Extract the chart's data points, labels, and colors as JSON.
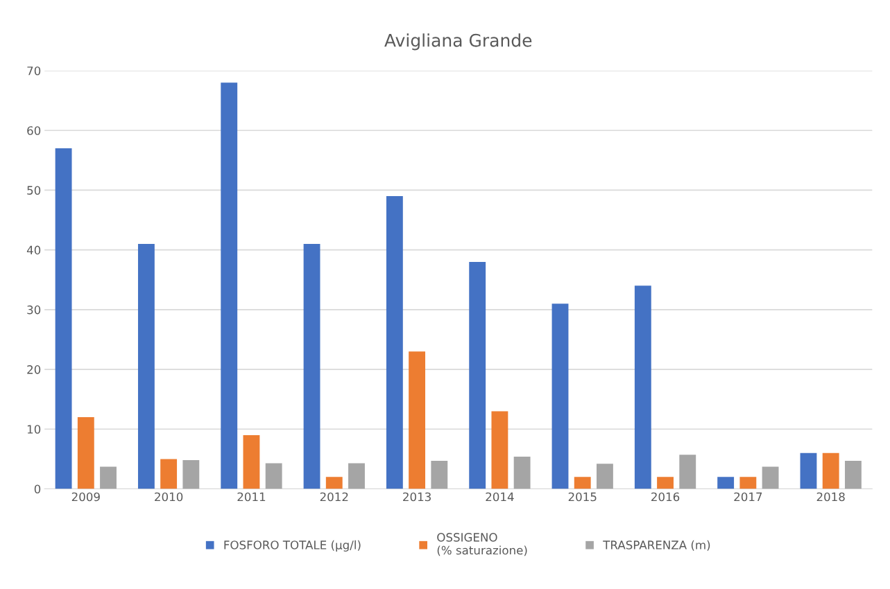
{
  "chart_data": {
    "type": "bar",
    "title": "Avigliana Grande",
    "categories": [
      "2009",
      "2010",
      "2011",
      "2012",
      "2013",
      "2014",
      "2015",
      "2016",
      "2017",
      "2018"
    ],
    "series": [
      {
        "name": "FOSFORO TOTALE (µg/l)",
        "color": "#4472c4",
        "values": [
          57,
          41,
          68,
          41,
          49,
          38,
          31,
          34,
          2,
          6
        ]
      },
      {
        "name": "OSSIGENO\n(% saturazione)",
        "color": "#ed7d31",
        "values": [
          12,
          5,
          9,
          2,
          23,
          13,
          2,
          2,
          2,
          6
        ]
      },
      {
        "name": "TRASPARENZA (m)",
        "color": "#a5a5a5",
        "values": [
          3.7,
          4.8,
          4.3,
          4.3,
          4.7,
          5.4,
          4.2,
          5.7,
          3.7,
          4.7
        ]
      }
    ],
    "ylim": [
      0,
      70
    ],
    "yticks": [
      0,
      10,
      20,
      30,
      40,
      50,
      60,
      70
    ],
    "grid": "y",
    "legend": "bottom"
  }
}
